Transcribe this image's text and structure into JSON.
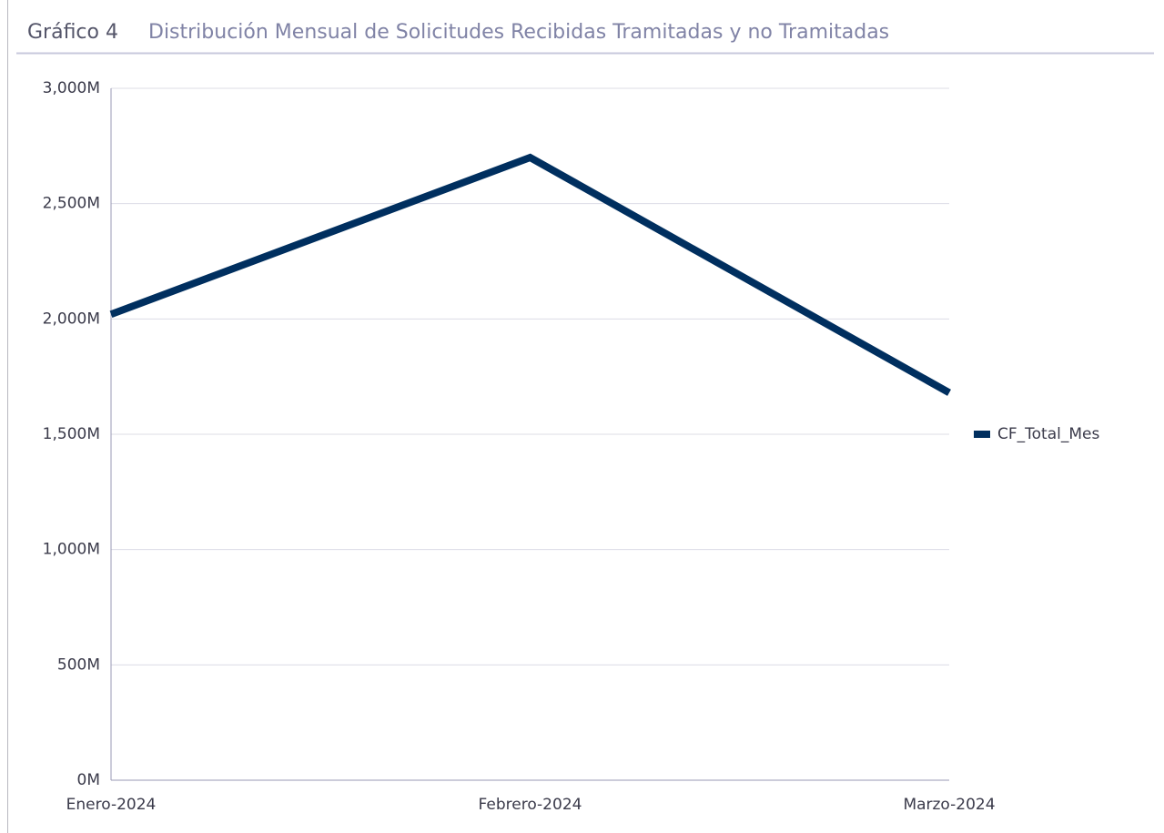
{
  "chart_data": {
    "type": "line",
    "chart_number": "Gráfico 4",
    "title": "Distribución Mensual de Solicitudes Recibidas Tramitadas y no Tramitadas",
    "categories": [
      "Enero-2024",
      "Febrero-2024",
      "Marzo-2024"
    ],
    "series": [
      {
        "name": "CF_Total_Mes",
        "color": "#002f5f",
        "values": [
          2020000000,
          2700000000,
          1680000000
        ]
      }
    ],
    "ylim": [
      0,
      3000000000
    ],
    "yticks": [
      {
        "value": 0,
        "label": "0M"
      },
      {
        "value": 500000000,
        "label": "500M"
      },
      {
        "value": 1000000000,
        "label": "1,000M"
      },
      {
        "value": 1500000000,
        "label": "1,500M"
      },
      {
        "value": 2000000000,
        "label": "2,000M"
      },
      {
        "value": 2500000000,
        "label": "2,500M"
      },
      {
        "value": 3000000000,
        "label": "3,000M"
      }
    ],
    "grid": true,
    "legend": "right"
  }
}
